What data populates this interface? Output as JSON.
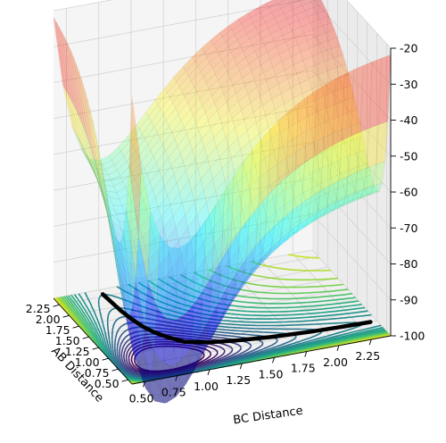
{
  "chart_data": {
    "type": "surface3d",
    "title": "",
    "xlabel": "AB Distance",
    "ylabel": "BC Distance",
    "zlabel": "",
    "x_ticks": [
      "0.50",
      "0.75",
      "1.00",
      "1.25",
      "1.50",
      "1.75",
      "2.00",
      "2.25"
    ],
    "y_ticks": [
      "0.50",
      "0.75",
      "1.00",
      "1.25",
      "1.50",
      "1.75",
      "2.00",
      "2.25"
    ],
    "z_ticks": [
      "-20",
      "-30",
      "-40",
      "-50",
      "-60",
      "-70",
      "-80",
      "-90",
      "-100"
    ],
    "xlim": [
      0.4,
      2.4
    ],
    "ylim": [
      0.4,
      2.4
    ],
    "zlim": [
      -100,
      -20
    ],
    "grid": true,
    "surface_colormap": "jet",
    "contour_colormap": "viridis",
    "reaction_path_color": "#000000",
    "reaction_path": {
      "ab": [
        2.3,
        2.1,
        1.9,
        1.7,
        1.5,
        1.35,
        1.2,
        1.05,
        0.95,
        0.88,
        0.82,
        0.78,
        0.76,
        0.75
      ],
      "bc": [
        0.75,
        0.76,
        0.77,
        0.79,
        0.82,
        0.86,
        0.92,
        1.0,
        1.15,
        1.35,
        1.6,
        1.9,
        2.15,
        2.35
      ]
    }
  }
}
